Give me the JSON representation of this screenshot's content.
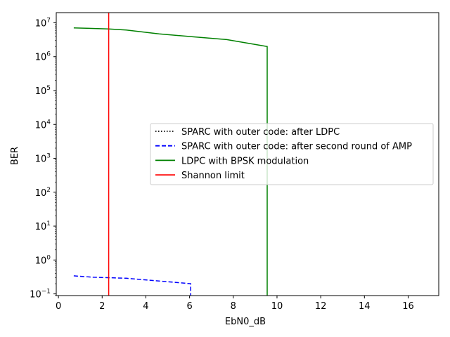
{
  "chart_data": {
    "type": "line",
    "xlabel": "EbN0_dB",
    "ylabel": "BER",
    "xlim": [
      -0.1,
      17.4
    ],
    "ylim_exponent": [
      -1.05,
      7.3
    ],
    "y_scale": "log",
    "grid": false,
    "legend_position": "center-right",
    "x_ticks": [
      0,
      2,
      4,
      6,
      8,
      10,
      12,
      14,
      16
    ],
    "y_ticks": [
      {
        "base": "10",
        "exp": "−1",
        "value": -1
      },
      {
        "base": "10",
        "exp": "0",
        "value": 0
      },
      {
        "base": "10",
        "exp": "1",
        "value": 1
      },
      {
        "base": "10",
        "exp": "2",
        "value": 2
      },
      {
        "base": "10",
        "exp": "3",
        "value": 3
      },
      {
        "base": "10",
        "exp": "4",
        "value": 4
      },
      {
        "base": "10",
        "exp": "5",
        "value": 5
      },
      {
        "base": "10",
        "exp": "6",
        "value": 6
      },
      {
        "base": "10",
        "exp": "7",
        "value": 7
      }
    ],
    "series": [
      {
        "name": "SPARC with outer code: after LDPC",
        "color": "#000000",
        "dash": "dotted",
        "points": []
      },
      {
        "name": "SPARC with outer code: after second round of AMP",
        "color": "#0000ff",
        "dash": "dashed",
        "points": [
          [
            0.7,
            0.34
          ],
          [
            1.6,
            0.31
          ],
          [
            3.1,
            0.29
          ],
          [
            4.6,
            0.24
          ],
          [
            6.05,
            0.2
          ],
          [
            6.05,
            0.088
          ]
        ]
      },
      {
        "name": "LDPC with BPSK modulation",
        "color": "#008000",
        "dash": "solid",
        "points": [
          [
            0.7,
            7100000
          ],
          [
            2.3,
            6600000
          ],
          [
            3.1,
            6100000
          ],
          [
            4.6,
            4700000
          ],
          [
            6.1,
            3900000
          ],
          [
            7.7,
            3200000
          ],
          [
            9.55,
            2000000
          ],
          [
            9.55,
            0.088
          ]
        ]
      },
      {
        "name": "Shannon limit",
        "color": "#ff0000",
        "dash": "solid",
        "points": [
          [
            2.3,
            0.088
          ],
          [
            2.3,
            20000000
          ]
        ]
      }
    ]
  }
}
